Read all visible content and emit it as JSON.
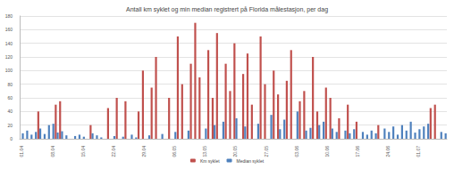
{
  "chart_data": {
    "type": "bar",
    "title": "Antall km syklet og min median registrert på Florida målestasjon, per dag",
    "categories": [
      "01.04",
      null,
      null,
      null,
      null,
      null,
      null,
      "08.04",
      null,
      null,
      null,
      null,
      null,
      null,
      "15.04",
      null,
      null,
      null,
      null,
      null,
      null,
      "22.04",
      null,
      null,
      null,
      null,
      null,
      null,
      "29.04",
      null,
      null,
      null,
      null,
      null,
      null,
      "06.05",
      null,
      null,
      null,
      null,
      null,
      null,
      "13.05",
      null,
      null,
      null,
      null,
      null,
      null,
      "20.05",
      null,
      null,
      null,
      null,
      null,
      null,
      "27.05",
      null,
      null,
      null,
      null,
      null,
      null,
      "03.06",
      null,
      null,
      null,
      null,
      null,
      null,
      "10.06",
      null,
      null,
      null,
      null,
      null,
      null,
      "17.06",
      null,
      null,
      null,
      null,
      null,
      null,
      "24.06",
      null,
      null,
      null,
      null,
      null,
      null,
      "01.07",
      null,
      null,
      null,
      null,
      null,
      null
    ],
    "series": [
      {
        "name": "Km syklet",
        "color": "#c0504d",
        "values": [
          0,
          0,
          0,
          0,
          40,
          0,
          0,
          0,
          50,
          55,
          0,
          0,
          0,
          0,
          0,
          0,
          20,
          0,
          0,
          0,
          45,
          0,
          60,
          0,
          55,
          0,
          0,
          40,
          100,
          0,
          75,
          120,
          0,
          0,
          60,
          0,
          150,
          80,
          0,
          110,
          170,
          90,
          0,
          130,
          60,
          155,
          0,
          110,
          70,
          140,
          0,
          95,
          125,
          50,
          0,
          150,
          80,
          0,
          100,
          65,
          0,
          85,
          130,
          0,
          55,
          70,
          0,
          120,
          40,
          0,
          75,
          60,
          0,
          30,
          0,
          50,
          0,
          25,
          0,
          0,
          0,
          0,
          20,
          0,
          0,
          0,
          0,
          0,
          0,
          0,
          0,
          0,
          0,
          0,
          45,
          50,
          0,
          0
        ]
      },
      {
        "name": "Median syklet",
        "color": "#4f81bd",
        "values": [
          8,
          12,
          6,
          10,
          15,
          7,
          20,
          22,
          9,
          11,
          5,
          0,
          4,
          6,
          3,
          0,
          8,
          5,
          2,
          0,
          0,
          4,
          0,
          3,
          0,
          6,
          2,
          0,
          0,
          5,
          0,
          0,
          7,
          0,
          0,
          10,
          0,
          0,
          12,
          0,
          0,
          0,
          15,
          0,
          20,
          0,
          25,
          0,
          0,
          30,
          0,
          18,
          0,
          0,
          22,
          0,
          0,
          35,
          0,
          14,
          28,
          0,
          0,
          40,
          0,
          12,
          16,
          0,
          20,
          25,
          0,
          15,
          10,
          0,
          12,
          8,
          14,
          0,
          10,
          6,
          12,
          8,
          0,
          15,
          10,
          18,
          6,
          20,
          12,
          25,
          9,
          14,
          18,
          22,
          0,
          0,
          10,
          8
        ]
      }
    ],
    "ylim": [
      0,
      180
    ],
    "yticks": [
      0,
      20,
      40,
      60,
      80,
      100,
      120,
      140,
      160,
      180
    ],
    "grid": true,
    "legend": "bottom"
  }
}
